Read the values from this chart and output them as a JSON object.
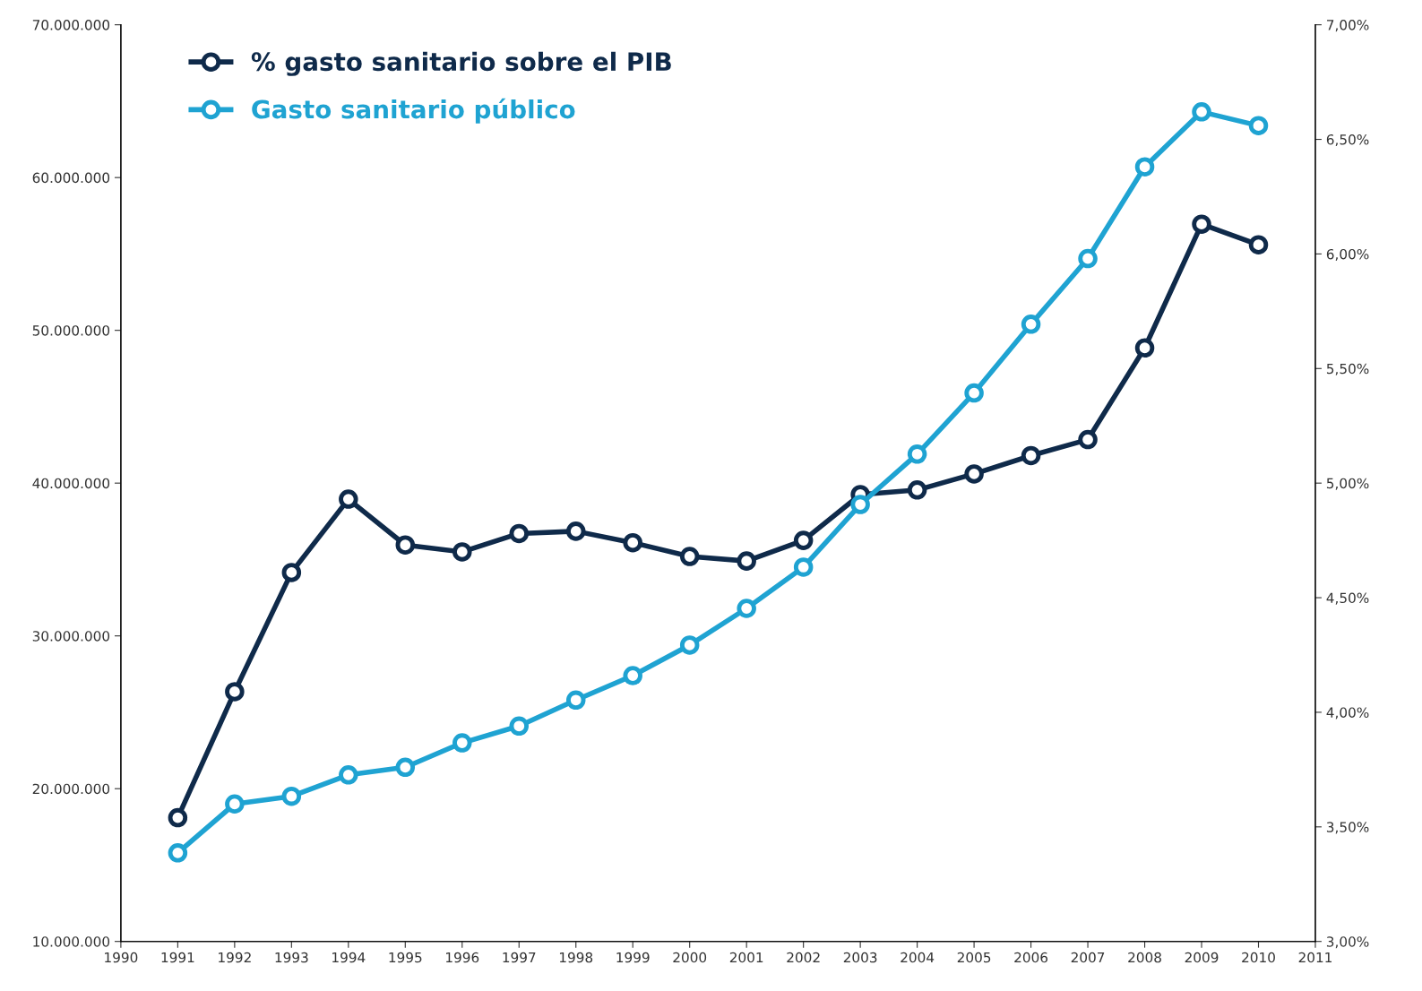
{
  "chart_data": {
    "type": "line",
    "x": [
      1991,
      1992,
      1993,
      1994,
      1995,
      1996,
      1997,
      1998,
      1999,
      2000,
      2001,
      2002,
      2003,
      2004,
      2005,
      2006,
      2007,
      2008,
      2009,
      2010
    ],
    "series": [
      {
        "name": "% gasto sanitario sobre el PIB",
        "color": "#0f2a4a",
        "axis": "y2",
        "values": [
          3.54,
          4.09,
          4.61,
          4.93,
          4.73,
          4.7,
          4.78,
          4.79,
          4.74,
          4.68,
          4.66,
          4.75,
          4.95,
          4.97,
          5.04,
          5.12,
          5.19,
          5.59,
          6.13,
          6.04
        ]
      },
      {
        "name": "Gasto sanitario público",
        "color": "#1fa3d2",
        "values": [
          15800000,
          19000000,
          19500000,
          20900000,
          21400000,
          23000000,
          24100000,
          25800000,
          27400000,
          29400000,
          31800000,
          34500000,
          38600000,
          41900000,
          45900000,
          50400000,
          54700000,
          60700000,
          64300000,
          63400000
        ]
      }
    ],
    "xlim": [
      1990,
      2011
    ],
    "xticks": [
      1990,
      1991,
      1992,
      1993,
      1994,
      1995,
      1996,
      1997,
      1998,
      1999,
      2000,
      2001,
      2002,
      2003,
      2004,
      2005,
      2006,
      2007,
      2008,
      2009,
      2010,
      2011
    ],
    "ylim": [
      10000000,
      70000000
    ],
    "yticks": [
      {
        "value": 10000000,
        "label": "10.000.000"
      },
      {
        "value": 20000000,
        "label": "20.000.000"
      },
      {
        "value": 30000000,
        "label": "30.000.000"
      },
      {
        "value": 40000000,
        "label": "40.000.000"
      },
      {
        "value": 50000000,
        "label": "50.000.000"
      },
      {
        "value": 60000000,
        "label": "60.000.000"
      },
      {
        "value": 70000000,
        "label": "70.000.000"
      }
    ],
    "y2lim": [
      3,
      7
    ],
    "y2ticks": [
      {
        "value": 3,
        "label": "3,00%"
      },
      {
        "value": 3.5,
        "label": "3,50%"
      },
      {
        "value": 4,
        "label": "4,00%"
      },
      {
        "value": 4.5,
        "label": "4,50%"
      },
      {
        "value": 5,
        "label": "5,00%"
      },
      {
        "value": 5.5,
        "label": "5,50%"
      },
      {
        "value": 6,
        "label": "6,00%"
      },
      {
        "value": 6.5,
        "label": "6,50%"
      },
      {
        "value": 7,
        "label": "7,00%"
      }
    ],
    "grid": false,
    "legend": "top left",
    "marker": "circle",
    "line_style": "solid"
  }
}
